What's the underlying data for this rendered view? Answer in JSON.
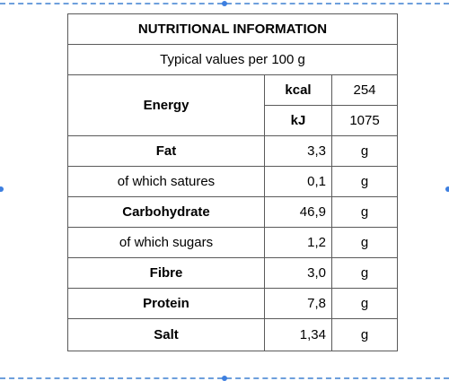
{
  "table": {
    "title": "NUTRITIONAL INFORMATION",
    "subtitle": "Typical values per 100 g",
    "energy": {
      "label": "Energy",
      "kcal_unit": "kcal",
      "kcal_value": "254",
      "kj_unit": "kJ",
      "kj_value": "1075"
    },
    "rows": [
      {
        "label": "Fat",
        "value": "3,3",
        "unit": "g"
      },
      {
        "label": "of which satures",
        "value": "0,1",
        "unit": "g"
      },
      {
        "label": "Carbohydrate",
        "value": "46,9",
        "unit": "g"
      },
      {
        "label": "of which sugars",
        "value": "1,2",
        "unit": "g"
      },
      {
        "label": "Fibre",
        "value": "3,0",
        "unit": "g"
      },
      {
        "label": "Protein",
        "value": "7,8",
        "unit": "g"
      },
      {
        "label": "Salt",
        "value": "1,34",
        "unit": "g"
      }
    ]
  }
}
